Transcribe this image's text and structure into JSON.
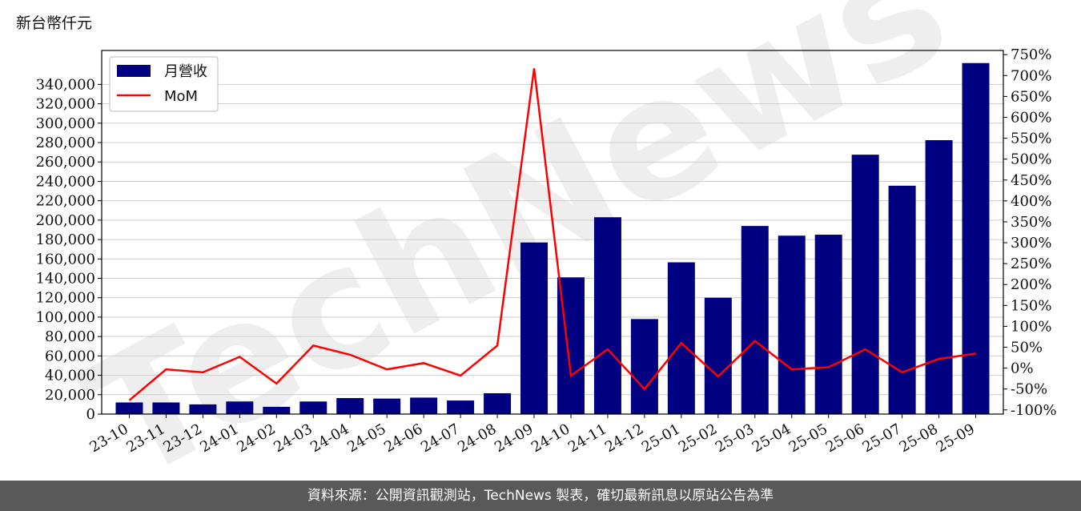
{
  "unit_label": "新台幣仟元",
  "watermark": "TechNews",
  "footer": "資料來源：公開資訊觀測站，TechNews 製表，確切最新訊息以原站公告為準",
  "colors": {
    "bar": "#000080",
    "line": "#ff0000",
    "grid": "#cccccc",
    "footer_bg": "#595959"
  },
  "chart_data": {
    "type": "bar",
    "categories": [
      "23-10",
      "23-11",
      "23-12",
      "24-01",
      "24-02",
      "24-03",
      "24-04",
      "24-05",
      "24-06",
      "24-07",
      "24-08",
      "24-09",
      "24-10",
      "24-11",
      "24-12",
      "25-01",
      "25-02",
      "25-03",
      "25-04",
      "25-05",
      "25-06",
      "25-07",
      "25-08",
      "25-09"
    ],
    "series": [
      {
        "name": "月營收",
        "type": "bar",
        "axis": "left",
        "values": [
          12000,
          12000,
          10000,
          13000,
          7500,
          13000,
          16500,
          16000,
          17000,
          14000,
          21500,
          177000,
          141000,
          203000,
          98000,
          156500,
          120000,
          194000,
          184000,
          185000,
          267500,
          235500,
          282500,
          362000
        ]
      },
      {
        "name": "MoM",
        "type": "line",
        "axis": "right",
        "unit": "%",
        "values": [
          -77,
          -3,
          -10,
          27,
          -37,
          54,
          32,
          -3,
          12,
          -18,
          54,
          717,
          -18,
          45,
          -50,
          60,
          -20,
          65,
          -3,
          2,
          45,
          -10,
          22,
          35
        ]
      }
    ],
    "ylim_left": [
      0,
      375000
    ],
    "yticks_left": [
      "0",
      "20,000",
      "40,000",
      "60,000",
      "80,000",
      "100,000",
      "120,000",
      "140,000",
      "160,000",
      "180,000",
      "200,000",
      "220,000",
      "240,000",
      "260,000",
      "280,000",
      "300,000",
      "320,000",
      "340,000"
    ],
    "ylim_right": [
      -110,
      760
    ],
    "yticks_right": [
      "-100%",
      "-50%",
      "0%",
      "50%",
      "100%",
      "150%",
      "200%",
      "250%",
      "300%",
      "350%",
      "400%",
      "450%",
      "500%",
      "550%",
      "600%",
      "650%",
      "700%",
      "750%"
    ],
    "grid": "horizontal",
    "legend_position": "top-left"
  }
}
